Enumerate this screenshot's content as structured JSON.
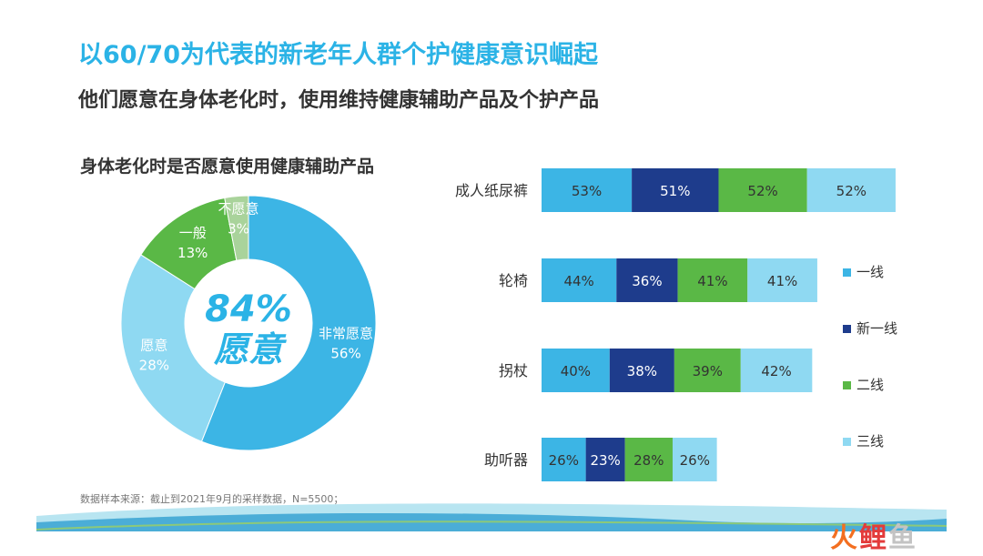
{
  "title": "以60/70为代表的新老年人群个护健康意识崛起",
  "subtitle": "他们愿意在身体老化时，使用维持健康辅助产品及个护产品",
  "chart_data": [
    {
      "type": "pie",
      "title": "身体老化时是否愿意使用健康辅助产品",
      "center_label": [
        "84%",
        "愿意"
      ],
      "slices": [
        {
          "label": "非常愿意",
          "value": 56,
          "display": "56%",
          "color": "#3cb5e5"
        },
        {
          "label": "愿意",
          "value": 28,
          "display": "28%",
          "color": "#8fd9f2"
        },
        {
          "label": "一般",
          "value": 13,
          "display": "13%",
          "color": "#5ab846"
        },
        {
          "label": "不愿意",
          "value": 3,
          "display": "3%",
          "color": "#a9d39b"
        }
      ]
    },
    {
      "type": "bar",
      "orientation": "horizontal",
      "stacked": true,
      "categories": [
        "成人纸尿裤",
        "轮椅",
        "拐杖",
        "助听器"
      ],
      "series": [
        {
          "name": "一线",
          "color": "#3cb5e5",
          "values": [
            53,
            44,
            40,
            26
          ]
        },
        {
          "name": "新一线",
          "color": "#1e3c8c",
          "values": [
            51,
            36,
            38,
            23
          ]
        },
        {
          "name": "二线",
          "color": "#5ab846",
          "values": [
            52,
            41,
            39,
            28
          ]
        },
        {
          "name": "三线",
          "color": "#8fd9f2",
          "values": [
            52,
            41,
            42,
            26
          ]
        }
      ],
      "legend_position": "right"
    }
  ],
  "footnote": "数据样本来源：截止到2021年9月的采样数据，N=5500；",
  "logo": {
    "p1": "火",
    "p2": "鲤",
    "p3": "鱼"
  }
}
